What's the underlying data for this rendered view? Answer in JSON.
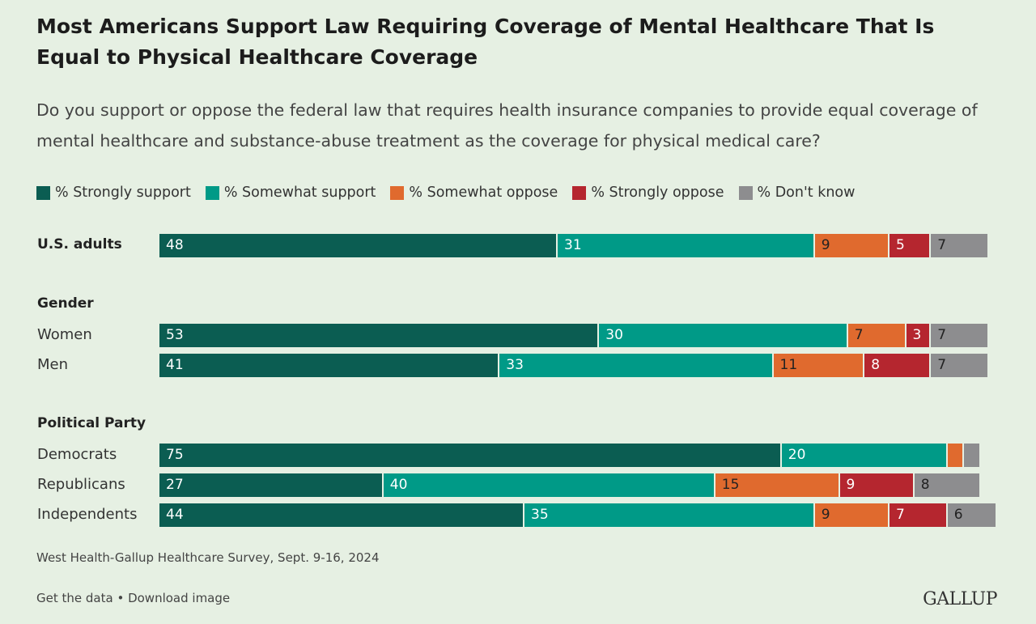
{
  "chart_data": {
    "type": "bar",
    "orientation": "horizontal-stacked",
    "title": "Most Americans Support Law Requiring Coverage of Mental Healthcare That Is Equal to Physical Healthcare Coverage",
    "subtitle": "Do you support or oppose the federal law that requires health insurance companies to provide equal coverage of mental healthcare and substance-abuse treatment as the coverage for physical medical care?",
    "legend_placement": "top",
    "series": [
      {
        "name": "% Strongly support",
        "color": "#0b5d52"
      },
      {
        "name": "% Somewhat support",
        "color": "#009a87"
      },
      {
        "name": "% Somewhat oppose",
        "color": "#e06a2e"
      },
      {
        "name": "% Strongly oppose",
        "color": "#b5262f"
      },
      {
        "name": "% Don't know",
        "color": "#8d8d8f"
      }
    ],
    "groups": [
      {
        "label": "",
        "rows": [
          {
            "label": "U.S. adults",
            "bold": true,
            "values": [
              48,
              31,
              9,
              5,
              7
            ],
            "shown": [
              true,
              true,
              true,
              true,
              true
            ]
          }
        ]
      },
      {
        "label": "Gender",
        "rows": [
          {
            "label": "Women",
            "values": [
              53,
              30,
              7,
              3,
              7
            ],
            "shown": [
              true,
              true,
              true,
              true,
              true
            ]
          },
          {
            "label": "Men",
            "values": [
              41,
              33,
              11,
              8,
              7
            ],
            "shown": [
              true,
              true,
              true,
              true,
              true
            ]
          }
        ]
      },
      {
        "label": "Political Party",
        "rows": [
          {
            "label": "Democrats",
            "values": [
              75,
              20,
              2,
              0,
              2
            ],
            "shown": [
              true,
              true,
              false,
              false,
              false
            ]
          },
          {
            "label": "Republicans",
            "values": [
              27,
              40,
              15,
              9,
              8
            ],
            "shown": [
              true,
              true,
              true,
              true,
              true
            ]
          },
          {
            "label": "Independents",
            "values": [
              44,
              35,
              9,
              7,
              6
            ],
            "shown": [
              true,
              true,
              true,
              true,
              true
            ]
          }
        ]
      }
    ],
    "xlim": [
      0,
      100
    ]
  },
  "footer": {
    "source": "West Health-Gallup Healthcare Survey, Sept. 9-16, 2024",
    "get_data": "Get the data",
    "separator": " • ",
    "download": "Download image",
    "logo": "GALLUP"
  }
}
